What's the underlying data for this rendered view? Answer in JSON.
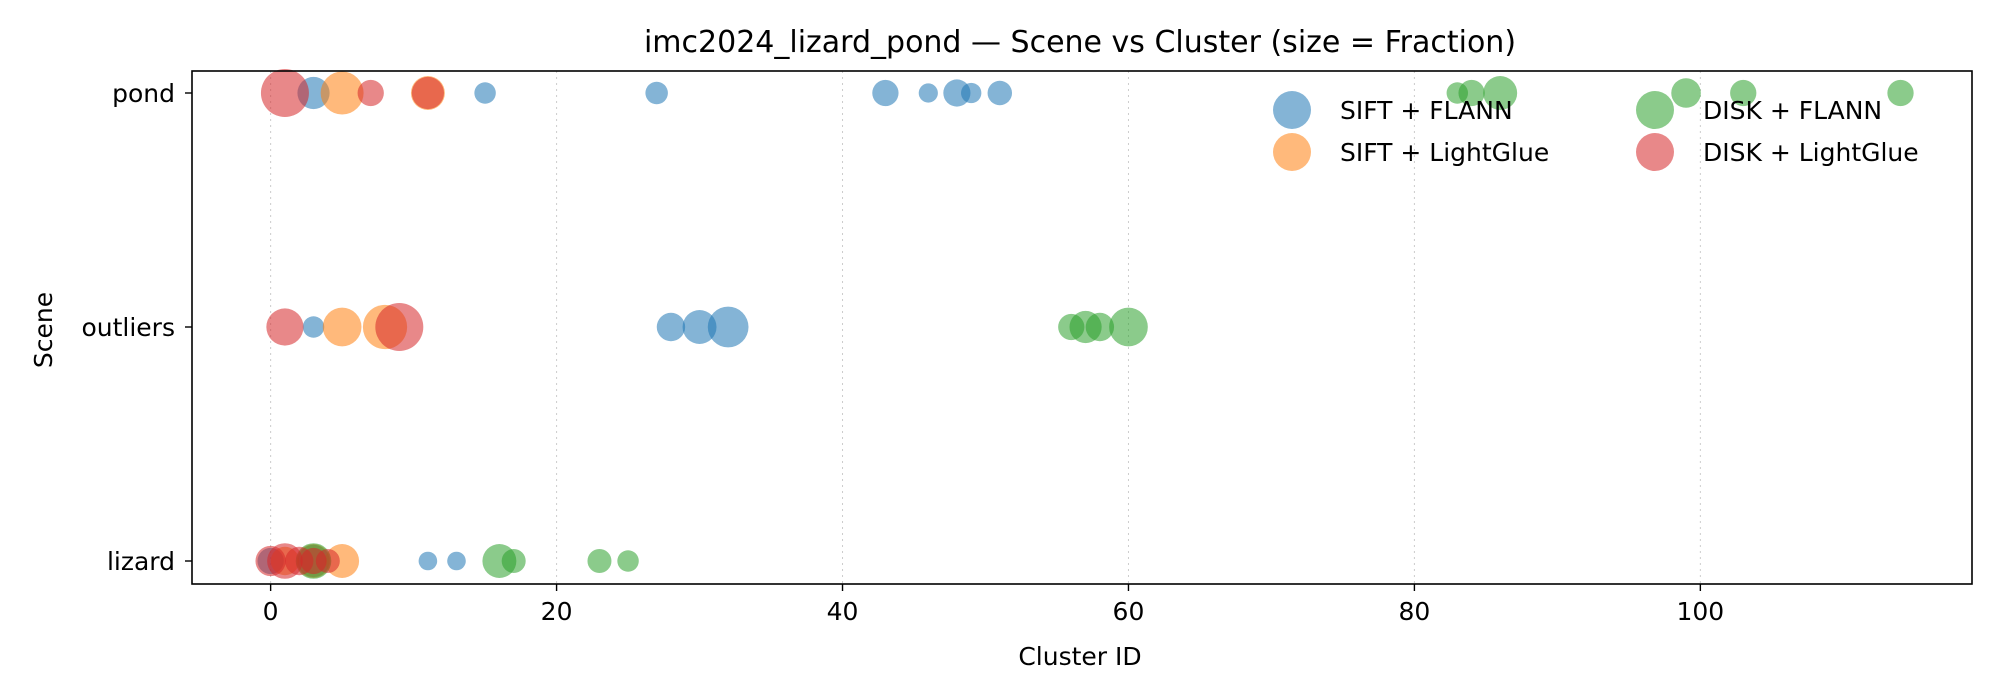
{
  "chart_data": {
    "type": "scatter",
    "title": "imc2024_lizard_pond — Scene vs Cluster (size = Fraction)",
    "xlabel": "Cluster ID",
    "ylabel": "Scene",
    "xlim": [
      -5.5,
      119
    ],
    "xticks": [
      0,
      20,
      40,
      60,
      80,
      100
    ],
    "categories": [
      "lizard",
      "outliers",
      "pond"
    ],
    "grid": "x-dotted",
    "legend_position": "top-right",
    "series": [
      {
        "name": "SIFT + FLANN",
        "color": "#1f77b4",
        "points": [
          {
            "x": 3,
            "y": "pond",
            "size": 0.45
          },
          {
            "x": 15,
            "y": "pond",
            "size": 0.2
          },
          {
            "x": 27,
            "y": "pond",
            "size": 0.22
          },
          {
            "x": 43,
            "y": "pond",
            "size": 0.3
          },
          {
            "x": 46,
            "y": "pond",
            "size": 0.16
          },
          {
            "x": 48,
            "y": "pond",
            "size": 0.32
          },
          {
            "x": 49,
            "y": "pond",
            "size": 0.18
          },
          {
            "x": 51,
            "y": "pond",
            "size": 0.26
          },
          {
            "x": 3,
            "y": "outliers",
            "size": 0.2
          },
          {
            "x": 28,
            "y": "outliers",
            "size": 0.35
          },
          {
            "x": 30,
            "y": "outliers",
            "size": 0.5
          },
          {
            "x": 32,
            "y": "outliers",
            "size": 0.72
          },
          {
            "x": 0,
            "y": "lizard",
            "size": 0.3
          },
          {
            "x": 3,
            "y": "lizard",
            "size": 0.45
          },
          {
            "x": 11,
            "y": "lizard",
            "size": 0.15
          },
          {
            "x": 13,
            "y": "lizard",
            "size": 0.15
          }
        ]
      },
      {
        "name": "SIFT + LightGlue",
        "color": "#ff7f0e",
        "points": [
          {
            "x": 5,
            "y": "pond",
            "size": 0.8
          },
          {
            "x": 11,
            "y": "pond",
            "size": 0.5
          },
          {
            "x": 5,
            "y": "outliers",
            "size": 0.65
          },
          {
            "x": 8,
            "y": "outliers",
            "size": 0.85
          },
          {
            "x": 1,
            "y": "lizard",
            "size": 0.35
          },
          {
            "x": 3,
            "y": "lizard",
            "size": 0.5
          },
          {
            "x": 5,
            "y": "lizard",
            "size": 0.5
          }
        ]
      },
      {
        "name": "DISK + FLANN",
        "color": "#2ca02c",
        "points": [
          {
            "x": 83,
            "y": "pond",
            "size": 0.2
          },
          {
            "x": 84,
            "y": "pond",
            "size": 0.3
          },
          {
            "x": 86,
            "y": "pond",
            "size": 0.5
          },
          {
            "x": 99,
            "y": "pond",
            "size": 0.38
          },
          {
            "x": 103,
            "y": "pond",
            "size": 0.3
          },
          {
            "x": 114,
            "y": "pond",
            "size": 0.3
          },
          {
            "x": 56,
            "y": "outliers",
            "size": 0.3
          },
          {
            "x": 57,
            "y": "outliers",
            "size": 0.45
          },
          {
            "x": 58,
            "y": "outliers",
            "size": 0.35
          },
          {
            "x": 60,
            "y": "outliers",
            "size": 0.65
          },
          {
            "x": 3,
            "y": "lizard",
            "size": 0.55
          },
          {
            "x": 16,
            "y": "lizard",
            "size": 0.5
          },
          {
            "x": 17,
            "y": "lizard",
            "size": 0.25
          },
          {
            "x": 23,
            "y": "lizard",
            "size": 0.25
          },
          {
            "x": 25,
            "y": "lizard",
            "size": 0.2
          }
        ]
      },
      {
        "name": "DISK + LightGlue",
        "color": "#d62728",
        "points": [
          {
            "x": 1,
            "y": "pond",
            "size": 1.0
          },
          {
            "x": 7,
            "y": "pond",
            "size": 0.3
          },
          {
            "x": 11,
            "y": "pond",
            "size": 0.45
          },
          {
            "x": 1,
            "y": "outliers",
            "size": 0.6
          },
          {
            "x": 9,
            "y": "outliers",
            "size": 1.0
          },
          {
            "x": 0,
            "y": "lizard",
            "size": 0.4
          },
          {
            "x": 1,
            "y": "lizard",
            "size": 0.55
          },
          {
            "x": 2,
            "y": "lizard",
            "size": 0.35
          },
          {
            "x": 3,
            "y": "lizard",
            "size": 0.3
          },
          {
            "x": 4,
            "y": "lizard",
            "size": 0.25
          }
        ]
      }
    ]
  }
}
